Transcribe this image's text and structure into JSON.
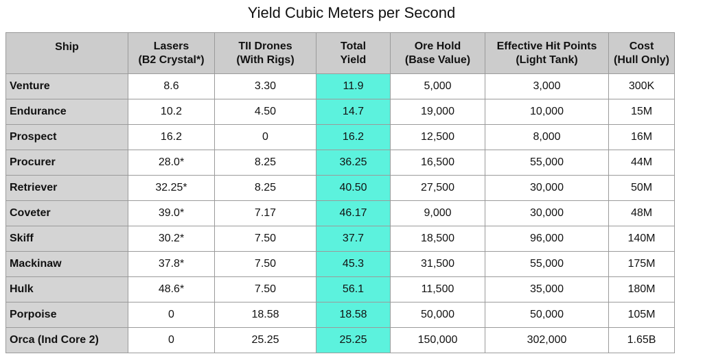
{
  "title": "Yield Cubic Meters per Second",
  "colors": {
    "header_bg": "#cccccc",
    "ship_col_bg": "#d4d4d4",
    "yield_highlight": "#5cf2dd",
    "border": "#9a9a9a"
  },
  "headers": [
    {
      "line1": "Ship",
      "line2": ""
    },
    {
      "line1": "Lasers",
      "line2": "(B2 Crystal*)"
    },
    {
      "line1": "TII Drones",
      "line2": "(With Rigs)"
    },
    {
      "line1": "Total",
      "line2": "Yield"
    },
    {
      "line1": "Ore Hold",
      "line2": "(Base Value)"
    },
    {
      "line1": "Effective Hit Points",
      "line2": "(Light Tank)"
    },
    {
      "line1": "Cost",
      "line2": "(Hull Only)"
    }
  ],
  "rows": [
    {
      "ship": "Venture",
      "lasers": "8.6",
      "drones": "3.30",
      "total": "11.9",
      "ore_hold": "5,000",
      "ehp": "3,000",
      "cost": "300K"
    },
    {
      "ship": "Endurance",
      "lasers": "10.2",
      "drones": "4.50",
      "total": "14.7",
      "ore_hold": "19,000",
      "ehp": "10,000",
      "cost": "15M"
    },
    {
      "ship": "Prospect",
      "lasers": "16.2",
      "drones": "0",
      "total": "16.2",
      "ore_hold": "12,500",
      "ehp": "8,000",
      "cost": "16M"
    },
    {
      "ship": "Procurer",
      "lasers": "28.0*",
      "drones": "8.25",
      "total": "36.25",
      "ore_hold": "16,500",
      "ehp": "55,000",
      "cost": "44M"
    },
    {
      "ship": "Retriever",
      "lasers": "32.25*",
      "drones": "8.25",
      "total": "40.50",
      "ore_hold": "27,500",
      "ehp": "30,000",
      "cost": "50M"
    },
    {
      "ship": "Coveter",
      "lasers": "39.0*",
      "drones": "7.17",
      "total": "46.17",
      "ore_hold": "9,000",
      "ehp": "30,000",
      "cost": "48M"
    },
    {
      "ship": "Skiff",
      "lasers": "30.2*",
      "drones": "7.50",
      "total": "37.7",
      "ore_hold": "18,500",
      "ehp": "96,000",
      "cost": "140M"
    },
    {
      "ship": "Mackinaw",
      "lasers": "37.8*",
      "drones": "7.50",
      "total": "45.3",
      "ore_hold": "31,500",
      "ehp": "55,000",
      "cost": "175M"
    },
    {
      "ship": "Hulk",
      "lasers": "48.6*",
      "drones": "7.50",
      "total": "56.1",
      "ore_hold": "11,500",
      "ehp": "35,000",
      "cost": "180M"
    },
    {
      "ship": "Porpoise",
      "lasers": "0",
      "drones": "18.58",
      "total": "18.58",
      "ore_hold": "50,000",
      "ehp": "50,000",
      "cost": "105M"
    },
    {
      "ship": "Orca (Ind Core 2)",
      "lasers": "0",
      "drones": "25.25",
      "total": "25.25",
      "ore_hold": "150,000",
      "ehp": "302,000",
      "cost": "1.65B"
    }
  ]
}
